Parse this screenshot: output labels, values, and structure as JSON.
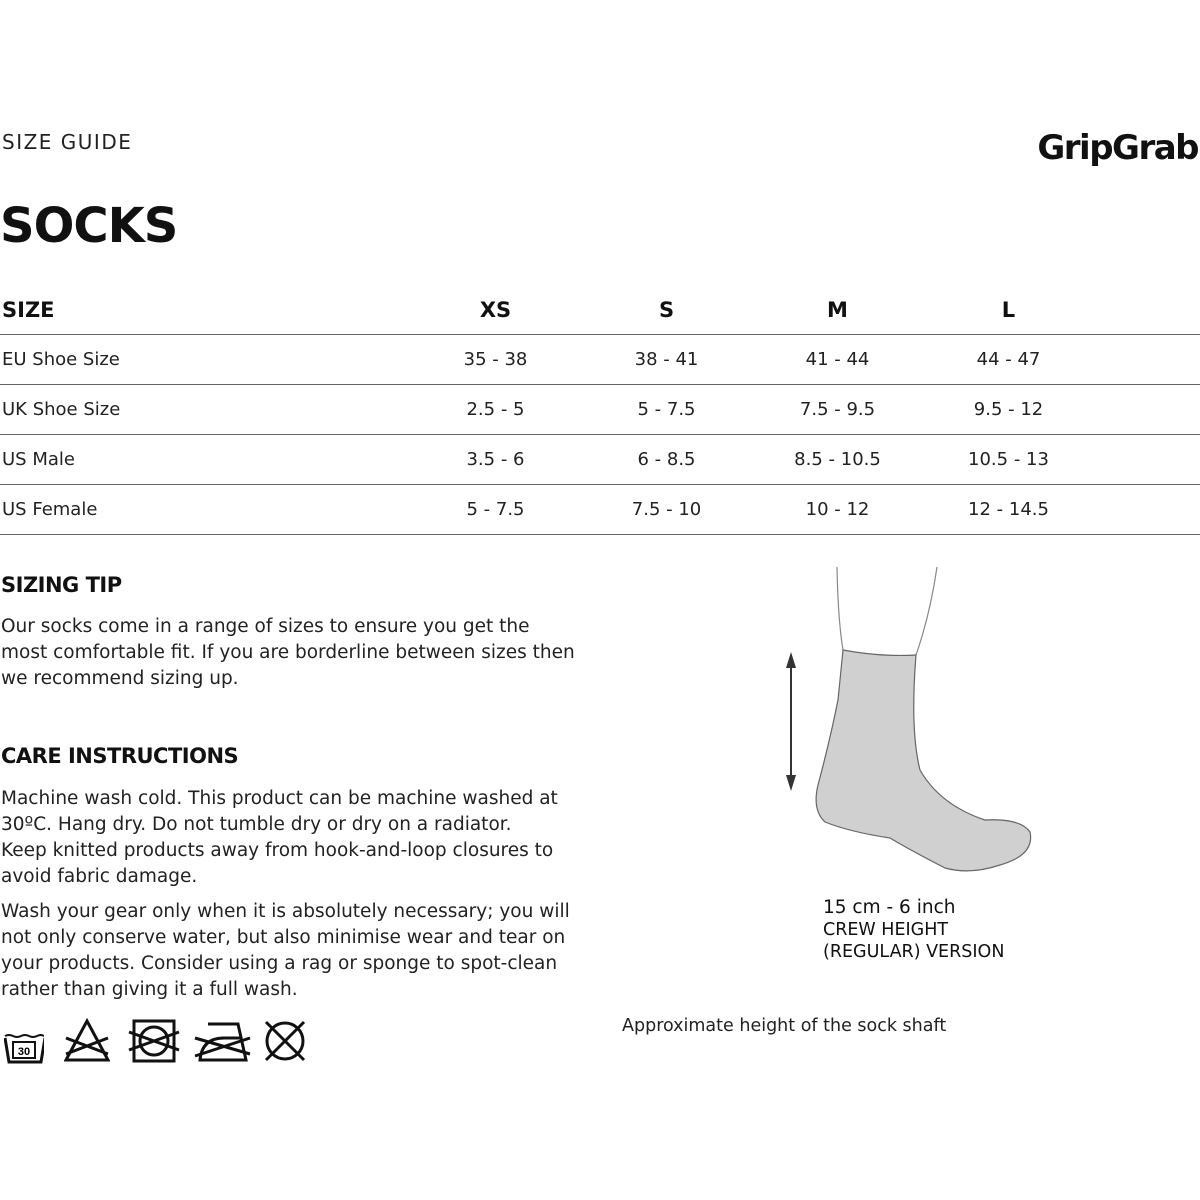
{
  "header": {
    "subtitle": "SIZE GUIDE",
    "brand": "GripGrab",
    "title": "SOCKS"
  },
  "size_table": {
    "columns": [
      "SIZE",
      "XS",
      "S",
      "M",
      "L"
    ],
    "rows": [
      {
        "label": "EU Shoe Size",
        "values": [
          "35 - 38",
          "38 - 41",
          "41 - 44",
          "44 - 47"
        ]
      },
      {
        "label": "UK Shoe Size",
        "values": [
          "2.5 - 5",
          "5 - 7.5",
          "7.5 - 9.5",
          "9.5 - 12"
        ]
      },
      {
        "label": "US Male",
        "values": [
          "3.5 - 6",
          "6 - 8.5",
          "8.5 - 10.5",
          "10.5 - 13"
        ]
      },
      {
        "label": "US Female",
        "values": [
          "5 - 7.5",
          "7.5 - 10",
          "10 - 12",
          "12 - 14.5"
        ]
      }
    ]
  },
  "sizing_tip": {
    "heading": "SIZING TIP",
    "text": "Our socks come in a range of sizes to ensure you get the most comfortable fit. If you are borderline between sizes then we recommend sizing up."
  },
  "care": {
    "heading": "CARE INSTRUCTIONS",
    "paragraphs": [
      "Machine wash cold. This product can be machine washed at 30ºC. Hang dry. Do not tumble dry or dry on a radiator. Keep knitted products away from hook-and-loop closures to avoid fabric damage.",
      "Wash your gear only when it is absolutely necessary; you will not only conserve water, but also minimise wear and tear on your products. Consider using a rag or sponge to spot-clean rather than giving it a full wash."
    ],
    "icons": [
      "wash-30-icon",
      "do-not-bleach-icon",
      "do-not-tumble-dry-icon",
      "do-not-iron-icon",
      "do-not-dry-clean-icon"
    ],
    "wash_temp": "30"
  },
  "diagram": {
    "measure": "15 cm - 6 inch",
    "line2": "CREW HEIGHT",
    "line3": "(REGULAR) VERSION",
    "caption": "Approximate height of the sock shaft",
    "sock_color": "#d0d0d0"
  }
}
